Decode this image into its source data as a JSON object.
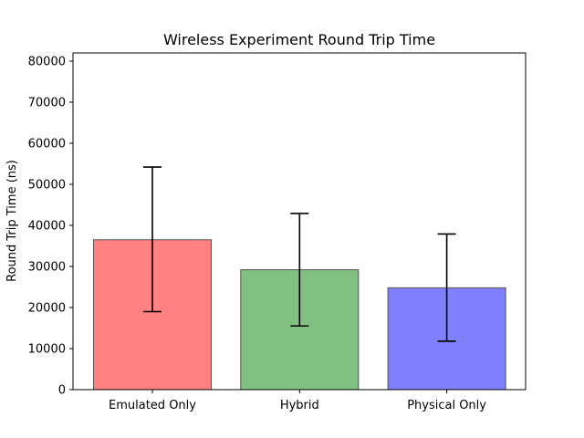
{
  "chart_data": {
    "type": "bar",
    "title": "Wireless Experiment Round Trip Time",
    "xlabel": "",
    "ylabel": "Round Trip Time (ns)",
    "ylim": [
      0,
      82000
    ],
    "yticks": [
      0,
      10000,
      20000,
      30000,
      40000,
      50000,
      60000,
      70000,
      80000
    ],
    "categories": [
      "Emulated Only",
      "Hybrid",
      "Physical Only"
    ],
    "values": [
      36500,
      29200,
      24800
    ],
    "error_low": [
      19000,
      15500,
      11800
    ],
    "error_high": [
      54200,
      42900,
      37900
    ],
    "colors": [
      "#ff8080",
      "#80c080",
      "#8080ff"
    ],
    "grid": false,
    "legend": "none"
  }
}
